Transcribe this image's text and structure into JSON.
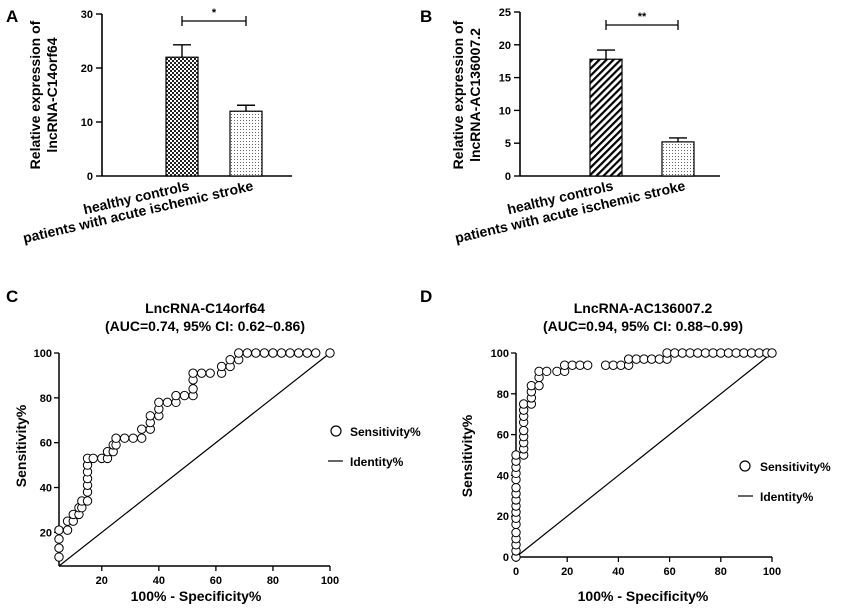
{
  "chart_data": [
    {
      "panel": "A",
      "type": "bar",
      "categories": [
        "healthy controls",
        "patients with acute ischemic stroke"
      ],
      "values": [
        22,
        12
      ],
      "errors": [
        2.3,
        1.1
      ],
      "patterns": [
        "checker",
        "dots"
      ],
      "ylabel_line1": "Relative expression of",
      "ylabel_line2": "lncRNA-C14orf64",
      "ylim": [
        0,
        30
      ],
      "yticks": [
        "0",
        "10",
        "20",
        "30"
      ],
      "significance": "*"
    },
    {
      "panel": "B",
      "type": "bar",
      "categories": [
        "healthy controls",
        "patients with acute ischemic stroke"
      ],
      "values": [
        17.8,
        5.2
      ],
      "errors": [
        1.4,
        0.6
      ],
      "patterns": [
        "hatch",
        "dots"
      ],
      "ylabel_line1": "Relative expression of",
      "ylabel_line2": "lncRNA-AC136007.2",
      "ylim": [
        0,
        25
      ],
      "yticks": [
        "0",
        "5",
        "10",
        "15",
        "20",
        "25"
      ],
      "significance": "**"
    },
    {
      "panel": "C",
      "type": "scatter",
      "title_line1": "LncRNA-C14orf64",
      "title_line2": "(AUC=0.74, 95% CI: 0.62~0.86)",
      "xlabel": "100% - Specificity%",
      "ylabel": "Sensitivity%",
      "xlim": [
        5,
        100
      ],
      "ylim": [
        5,
        100
      ],
      "xticks": [
        "20",
        "40",
        "60",
        "80",
        "100"
      ],
      "yticks": [
        "20",
        "40",
        "60",
        "80",
        "100"
      ],
      "legend": [
        "Sensitivity%",
        "Identity%"
      ],
      "identity": [
        [
          5,
          5
        ],
        [
          100,
          100
        ]
      ],
      "points": [
        [
          5,
          9
        ],
        [
          5,
          13
        ],
        [
          5,
          17
        ],
        [
          5,
          21
        ],
        [
          8,
          21
        ],
        [
          8,
          25
        ],
        [
          10,
          25
        ],
        [
          10,
          28
        ],
        [
          12,
          28
        ],
        [
          12,
          31
        ],
        [
          13,
          31
        ],
        [
          13,
          34
        ],
        [
          15,
          34
        ],
        [
          15,
          38
        ],
        [
          15,
          41
        ],
        [
          15,
          44
        ],
        [
          15,
          47
        ],
        [
          15,
          50
        ],
        [
          15,
          53
        ],
        [
          17,
          53
        ],
        [
          20,
          53
        ],
        [
          22,
          53
        ],
        [
          22,
          56
        ],
        [
          24,
          56
        ],
        [
          24,
          59
        ],
        [
          25,
          59
        ],
        [
          25,
          62
        ],
        [
          28,
          62
        ],
        [
          31,
          62
        ],
        [
          34,
          62
        ],
        [
          34,
          66
        ],
        [
          37,
          66
        ],
        [
          37,
          69
        ],
        [
          37,
          72
        ],
        [
          40,
          72
        ],
        [
          40,
          75
        ],
        [
          40,
          78
        ],
        [
          43,
          78
        ],
        [
          46,
          78
        ],
        [
          46,
          81
        ],
        [
          49,
          81
        ],
        [
          52,
          81
        ],
        [
          52,
          84
        ],
        [
          52,
          88
        ],
        [
          52,
          91
        ],
        [
          55,
          91
        ],
        [
          58,
          91
        ],
        [
          62,
          91
        ],
        [
          62,
          94
        ],
        [
          65,
          94
        ],
        [
          65,
          97
        ],
        [
          68,
          97
        ],
        [
          68,
          100
        ],
        [
          71,
          100
        ],
        [
          74,
          100
        ],
        [
          77,
          100
        ],
        [
          80,
          100
        ],
        [
          83,
          100
        ],
        [
          86,
          100
        ],
        [
          89,
          100
        ],
        [
          92,
          100
        ],
        [
          95,
          100
        ],
        [
          100,
          100
        ]
      ]
    },
    {
      "panel": "D",
      "type": "scatter",
      "title_line1": "LncRNA-AC136007.2",
      "title_line2": "(AUC=0.94, 95% CI: 0.88~0.99)",
      "xlabel": "100% - Specificity%",
      "ylabel": "Sensitivity%",
      "xlim": [
        0,
        100
      ],
      "ylim": [
        0,
        100
      ],
      "xticks": [
        "0",
        "20",
        "40",
        "60",
        "80",
        "100"
      ],
      "yticks": [
        "0",
        "20",
        "40",
        "60",
        "80",
        "100"
      ],
      "legend": [
        "Sensitivity%",
        "Identity%"
      ],
      "identity": [
        [
          0,
          0
        ],
        [
          100,
          100
        ]
      ],
      "points": [
        [
          0,
          0
        ],
        [
          0,
          3
        ],
        [
          0,
          6
        ],
        [
          0,
          9
        ],
        [
          0,
          12
        ],
        [
          0,
          16
        ],
        [
          0,
          19
        ],
        [
          0,
          22
        ],
        [
          0,
          25
        ],
        [
          0,
          28
        ],
        [
          0,
          31
        ],
        [
          0,
          34
        ],
        [
          0,
          38
        ],
        [
          0,
          41
        ],
        [
          0,
          44
        ],
        [
          0,
          47
        ],
        [
          0,
          50
        ],
        [
          3,
          50
        ],
        [
          3,
          53
        ],
        [
          3,
          56
        ],
        [
          3,
          59
        ],
        [
          3,
          62
        ],
        [
          3,
          66
        ],
        [
          3,
          69
        ],
        [
          3,
          72
        ],
        [
          3,
          75
        ],
        [
          6,
          75
        ],
        [
          6,
          78
        ],
        [
          6,
          81
        ],
        [
          6,
          84
        ],
        [
          9,
          84
        ],
        [
          9,
          88
        ],
        [
          9,
          91
        ],
        [
          12,
          91
        ],
        [
          16,
          91
        ],
        [
          19,
          91
        ],
        [
          19,
          94
        ],
        [
          22,
          94
        ],
        [
          25,
          94
        ],
        [
          28,
          94
        ],
        [
          35,
          94
        ],
        [
          38,
          94
        ],
        [
          41,
          94
        ],
        [
          44,
          94
        ],
        [
          44,
          97
        ],
        [
          47,
          97
        ],
        [
          50,
          97
        ],
        [
          53,
          97
        ],
        [
          56,
          97
        ],
        [
          59,
          97
        ],
        [
          59,
          100
        ],
        [
          62,
          100
        ],
        [
          65,
          100
        ],
        [
          68,
          100
        ],
        [
          71,
          100
        ],
        [
          74,
          100
        ],
        [
          77,
          100
        ],
        [
          80,
          100
        ],
        [
          83,
          100
        ],
        [
          86,
          100
        ],
        [
          89,
          100
        ],
        [
          92,
          100
        ],
        [
          95,
          100
        ],
        [
          98,
          100
        ],
        [
          100,
          100
        ]
      ]
    }
  ]
}
